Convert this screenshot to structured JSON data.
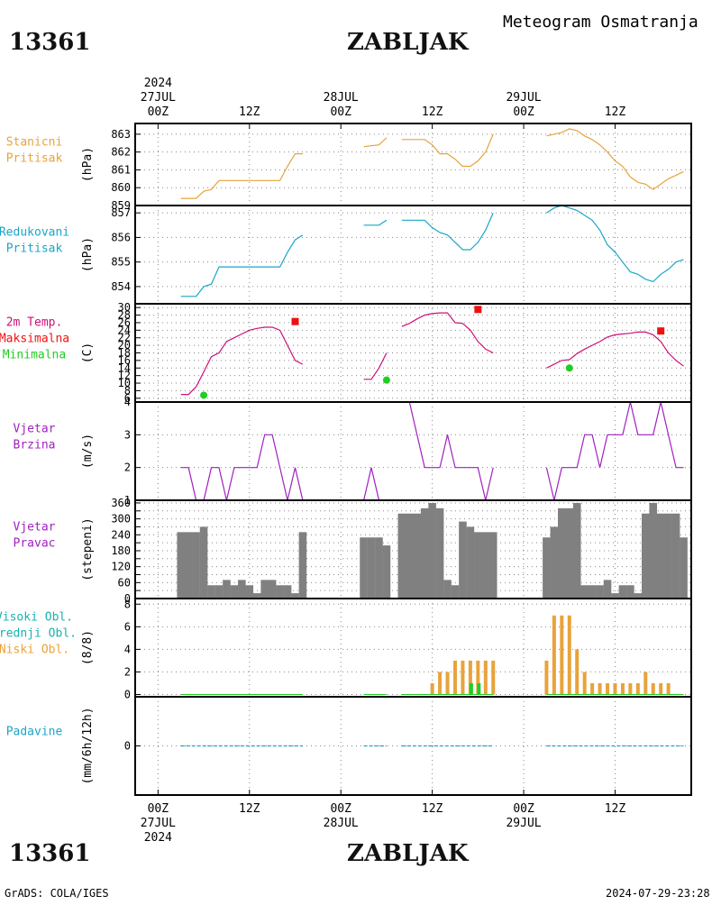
{
  "header": {
    "station_id": "13361",
    "station_name": "ZABLJAK",
    "chart_title": "Meteogram Osmatranja"
  },
  "footer": {
    "station_id": "13361",
    "station_name": "ZABLJAK",
    "credit": "GrADS: COLA/IGES",
    "timestamp": "2024-07-29-23:28"
  },
  "colors": {
    "orange": "#e8a33a",
    "cyan": "#1aa6c8",
    "magenta": "#cc1177",
    "red": "#ee1111",
    "green": "#22cc22",
    "purple": "#a020c0",
    "bar_gray": "#808080",
    "teal": "#1ab0b0"
  },
  "time_axis": {
    "top_labels": [
      {
        "hour": 0,
        "lines": [
          "2024",
          "27JUL",
          "00Z"
        ]
      },
      {
        "hour": 12,
        "lines": [
          "12Z"
        ]
      },
      {
        "hour": 24,
        "lines": [
          "28JUL",
          "00Z"
        ]
      },
      {
        "hour": 36,
        "lines": [
          "12Z"
        ]
      },
      {
        "hour": 48,
        "lines": [
          "29JUL",
          "00Z"
        ]
      },
      {
        "hour": 60,
        "lines": [
          "12Z"
        ]
      }
    ],
    "bottom_labels": [
      {
        "hour": 0,
        "lines": [
          "00Z",
          "27JUL",
          "2024"
        ]
      },
      {
        "hour": 12,
        "lines": [
          "12Z"
        ]
      },
      {
        "hour": 24,
        "lines": [
          "00Z",
          "28JUL"
        ]
      },
      {
        "hour": 36,
        "lines": [
          "12Z"
        ]
      },
      {
        "hour": 48,
        "lines": [
          "00Z",
          "29JUL"
        ]
      },
      {
        "hour": 60,
        "lines": [
          "12Z"
        ]
      }
    ],
    "hour_range": [
      -3,
      70
    ]
  },
  "chart_data": [
    {
      "id": "station-pressure",
      "type": "line",
      "labels": [
        {
          "text": "Stanicni",
          "color": "orange"
        },
        {
          "text": "Pritisak",
          "color": "orange"
        }
      ],
      "ylabel": "(hPa)",
      "ylim": [
        859,
        863.6
      ],
      "yticks": [
        859,
        860,
        861,
        862,
        863
      ],
      "color": "orange",
      "series": [
        {
          "x": [
            3,
            5,
            6,
            7,
            8,
            16,
            17,
            18,
            19
          ],
          "y": [
            859.4,
            859.4,
            859.8,
            859.9,
            860.4,
            860.4,
            861.2,
            861.9,
            861.9
          ]
        },
        {
          "x": [
            27,
            29,
            30
          ],
          "y": [
            862.3,
            862.4,
            862.8
          ]
        },
        {
          "x": [
            32,
            35,
            36,
            37,
            38,
            39,
            40,
            41,
            42,
            43,
            44
          ],
          "y": [
            862.7,
            862.7,
            862.4,
            861.9,
            861.9,
            861.6,
            861.2,
            861.2,
            861.5,
            862.0,
            863.0
          ]
        },
        {
          "x": [
            51,
            53,
            54,
            55,
            56,
            57,
            58,
            59,
            60,
            61,
            62,
            63,
            64,
            65,
            66,
            67,
            68,
            69
          ],
          "y": [
            862.9,
            863.1,
            863.3,
            863.2,
            862.9,
            862.7,
            862.4,
            862.0,
            861.5,
            861.2,
            860.6,
            860.3,
            860.2,
            859.9,
            860.2,
            860.5,
            860.7,
            860.9
          ]
        }
      ]
    },
    {
      "id": "reduced-pressure",
      "type": "line",
      "labels": [
        {
          "text": "Redukovani",
          "color": "cyan"
        },
        {
          "text": "Pritisak",
          "color": "cyan"
        }
      ],
      "ylabel": "(hPa)",
      "ylim": [
        853.3,
        857.3
      ],
      "yticks": [
        854,
        855,
        856,
        857
      ],
      "color": "cyan",
      "series": [
        {
          "x": [
            3,
            5,
            6,
            7,
            8,
            16,
            17,
            18,
            19
          ],
          "y": [
            853.6,
            853.6,
            854.0,
            854.1,
            854.8,
            854.8,
            855.4,
            855.9,
            856.1
          ]
        },
        {
          "x": [
            27,
            29,
            30
          ],
          "y": [
            856.5,
            856.5,
            856.7
          ]
        },
        {
          "x": [
            32,
            35,
            36,
            37,
            38,
            39,
            40,
            41,
            42,
            43,
            44
          ],
          "y": [
            856.7,
            856.7,
            856.4,
            856.2,
            856.1,
            855.8,
            855.5,
            855.5,
            855.8,
            856.3,
            857.0
          ]
        },
        {
          "x": [
            51,
            52,
            53,
            54,
            55,
            56,
            57,
            58,
            59,
            60,
            61,
            62,
            63,
            64,
            65,
            66,
            67,
            68,
            69
          ],
          "y": [
            857.0,
            857.2,
            857.3,
            857.2,
            857.1,
            856.9,
            856.7,
            856.3,
            855.7,
            855.4,
            855.0,
            854.6,
            854.5,
            854.3,
            854.2,
            854.5,
            854.7,
            855.0,
            855.1
          ]
        }
      ]
    },
    {
      "id": "temperature",
      "type": "line",
      "labels": [
        {
          "text": "2m Temp.",
          "color": "magenta"
        },
        {
          "text": "Maksimalna",
          "color": "red"
        },
        {
          "text": "Minimalna",
          "color": "green"
        }
      ],
      "ylabel": "(C)",
      "ylim": [
        5,
        31
      ],
      "yticks": [
        6,
        8,
        10,
        12,
        14,
        16,
        18,
        20,
        22,
        24,
        26,
        28,
        30
      ],
      "color": "magenta",
      "series": [
        {
          "x": [
            3,
            4,
            5,
            6,
            7,
            8,
            9,
            10,
            11,
            12,
            13,
            14,
            15,
            16,
            17,
            18,
            19
          ],
          "y": [
            7,
            7,
            9,
            13,
            17,
            18,
            21,
            22,
            23,
            24,
            24.5,
            24.8,
            24.8,
            24,
            20,
            16,
            15
          ]
        },
        {
          "x": [
            27,
            28,
            29,
            30
          ],
          "y": [
            11,
            11,
            14,
            18
          ]
        },
        {
          "x": [
            32,
            33,
            34,
            35,
            36,
            37,
            38,
            39,
            40,
            41,
            42,
            43,
            44
          ],
          "y": [
            25,
            25.8,
            27,
            28,
            28.4,
            28.6,
            28.6,
            26,
            25.8,
            24,
            21,
            19,
            18
          ]
        },
        {
          "x": [
            51,
            52,
            53,
            54,
            55,
            56,
            57,
            58,
            59,
            60,
            61,
            62,
            63,
            64,
            65,
            66,
            67,
            68,
            69
          ],
          "y": [
            14,
            15,
            16,
            16.2,
            17.8,
            19,
            20,
            21,
            22.2,
            22.8,
            23,
            23.2,
            23.5,
            23.5,
            22.8,
            21,
            18,
            16,
            14.5
          ]
        }
      ],
      "max_points": [
        {
          "x": 18,
          "y": 26.3
        },
        {
          "x": 42,
          "y": 29.5
        },
        {
          "x": 66,
          "y": 23.8
        }
      ],
      "min_points": [
        {
          "x": 6,
          "y": 6.8
        },
        {
          "x": 30,
          "y": 10.8
        },
        {
          "x": 54,
          "y": 14
        }
      ]
    },
    {
      "id": "wind-speed",
      "type": "line",
      "labels": [
        {
          "text": "Vjetar",
          "color": "purple"
        },
        {
          "text": "Brzina",
          "color": "purple"
        }
      ],
      "ylabel": "(m/s)",
      "ylim": [
        1,
        4
      ],
      "yticks": [
        1,
        2,
        3,
        4
      ],
      "color": "purple",
      "series": [
        {
          "x": [
            3,
            4,
            5,
            6,
            7,
            8,
            9,
            10,
            11,
            12,
            13,
            14,
            15,
            16,
            17,
            18,
            19
          ],
          "y": [
            2,
            2,
            1,
            1,
            2,
            2,
            1,
            2,
            2,
            2,
            2,
            3,
            3,
            2,
            1,
            2,
            1
          ]
        },
        {
          "x": [
            27,
            28,
            29,
            30
          ],
          "y": [
            1,
            2,
            1,
            1
          ]
        },
        {
          "x": [
            32,
            33,
            34,
            35,
            36,
            37,
            38,
            39,
            40,
            41,
            42,
            43,
            44
          ],
          "y": [
            4,
            4,
            3,
            2,
            2,
            2,
            3,
            2,
            2,
            2,
            2,
            1,
            2
          ]
        },
        {
          "x": [
            51,
            52,
            53,
            54,
            55,
            56,
            57,
            58,
            59,
            60,
            61,
            62,
            63,
            64,
            65,
            66,
            67,
            68,
            69
          ],
          "y": [
            2,
            1,
            2,
            2,
            2,
            3,
            3,
            2,
            3,
            3,
            3,
            4,
            3,
            3,
            3,
            4,
            3,
            2,
            2
          ]
        }
      ]
    },
    {
      "id": "wind-direction",
      "type": "bar",
      "labels": [
        {
          "text": "Vjetar",
          "color": "purple"
        },
        {
          "text": "Pravac",
          "color": "purple"
        }
      ],
      "ylabel": "(stepeni)",
      "ylim": [
        0,
        370
      ],
      "yticks": [
        0,
        30,
        60,
        90,
        120,
        150,
        180,
        210,
        240,
        270,
        300,
        330,
        360
      ],
      "ytick_labels": [
        "0",
        "",
        "60",
        "",
        "120",
        "",
        "180",
        "",
        "240",
        "",
        "300",
        "",
        "360"
      ],
      "color": "bar_gray",
      "x": [
        3,
        4,
        5,
        6,
        7,
        8,
        9,
        10,
        11,
        12,
        13,
        14,
        15,
        16,
        17,
        18,
        19,
        27,
        28,
        29,
        30,
        32,
        33,
        34,
        35,
        36,
        37,
        38,
        39,
        40,
        41,
        42,
        43,
        44,
        51,
        52,
        53,
        54,
        55,
        56,
        57,
        58,
        59,
        60,
        61,
        62,
        63,
        64,
        65,
        66,
        67,
        68,
        69
      ],
      "values": [
        250,
        250,
        250,
        270,
        50,
        50,
        70,
        50,
        70,
        50,
        20,
        70,
        70,
        50,
        50,
        20,
        250,
        230,
        230,
        230,
        200,
        320,
        320,
        320,
        340,
        360,
        340,
        70,
        50,
        290,
        270,
        250,
        250,
        250,
        230,
        270,
        340,
        340,
        360,
        50,
        50,
        50,
        70,
        20,
        50,
        50,
        20,
        320,
        360,
        320,
        320,
        320,
        230
      ]
    },
    {
      "id": "clouds",
      "type": "bar",
      "labels": [
        {
          "text": "Visoki Obl.",
          "color": "teal"
        },
        {
          "text": "Srednji Obl.",
          "color": "teal"
        },
        {
          "text": "Niski Obl.",
          "color": "orange"
        }
      ],
      "ylabel": "(8/8)",
      "ylim": [
        -0.2,
        8.5
      ],
      "yticks": [
        0,
        2,
        4,
        6,
        8
      ],
      "color": "orange",
      "x": [
        36,
        37,
        38,
        39,
        40,
        41,
        42,
        43,
        44,
        51,
        52,
        53,
        54,
        55,
        56,
        57,
        58,
        59,
        60,
        61,
        62,
        63,
        64,
        65,
        66,
        67
      ],
      "values": [
        1,
        2,
        2,
        3,
        3,
        3,
        3,
        3,
        3,
        3,
        7,
        7,
        7,
        4,
        2,
        1,
        1,
        1,
        1,
        1,
        1,
        1,
        2,
        1,
        1,
        1
      ],
      "middle_x": [
        41,
        42
      ],
      "middle_values": [
        1,
        1
      ]
    },
    {
      "id": "precipitation",
      "type": "line",
      "labels": [
        {
          "text": "Padavine",
          "color": "cyan"
        }
      ],
      "ylabel": "(mm/6h/12h)",
      "ylim": [
        -1,
        1
      ],
      "yticks": [
        0
      ],
      "color": "cyan",
      "series": [
        {
          "x": [
            3,
            19
          ],
          "y": [
            0,
            0
          ]
        },
        {
          "x": [
            27,
            30
          ],
          "y": [
            0,
            0
          ]
        },
        {
          "x": [
            32,
            44
          ],
          "y": [
            0,
            0
          ]
        },
        {
          "x": [
            51,
            69
          ],
          "y": [
            0,
            0
          ]
        }
      ]
    }
  ]
}
